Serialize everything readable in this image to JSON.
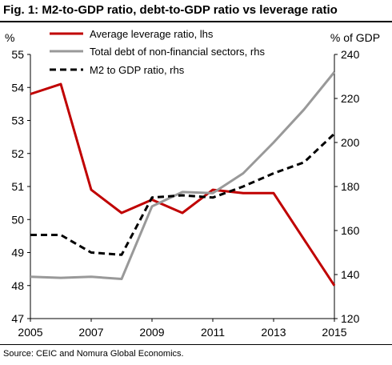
{
  "title": "Fig. 1: M2-to-GDP ratio, debt-to-GDP ratio vs leverage ratio",
  "source": "Source: CEIC and Nomura Global Economics.",
  "chart_data": {
    "type": "line",
    "x": [
      2005,
      2006,
      2007,
      2008,
      2009,
      2010,
      2011,
      2012,
      2013,
      2014,
      2015
    ],
    "x_ticks": [
      "2005",
      "2007",
      "2009",
      "2011",
      "2013",
      "2015"
    ],
    "x_tick_values": [
      2005,
      2007,
      2009,
      2011,
      2013,
      2015
    ],
    "xlim": [
      2005,
      2015
    ],
    "y_left": {
      "label": "%",
      "lim": [
        47,
        55
      ],
      "ticks": [
        "47",
        "48",
        "49",
        "50",
        "51",
        "52",
        "53",
        "54",
        "55"
      ],
      "tick_values": [
        47,
        48,
        49,
        50,
        51,
        52,
        53,
        54,
        55
      ]
    },
    "y_right": {
      "label": "% of GDP",
      "lim": [
        120,
        240
      ],
      "ticks": [
        "120",
        "140",
        "160",
        "180",
        "200",
        "220",
        "240"
      ],
      "tick_values": [
        120,
        140,
        160,
        180,
        200,
        220,
        240
      ]
    },
    "grid": false,
    "legend_position": "top-left",
    "series": [
      {
        "name": "Average leverage ratio, lhs",
        "axis": "left",
        "color": "#c00000",
        "style": "solid",
        "x": [
          2005,
          2006,
          2007,
          2008,
          2009,
          2010,
          2011,
          2012,
          2013,
          2015
        ],
        "values": [
          53.8,
          54.1,
          50.9,
          50.2,
          50.6,
          50.2,
          50.9,
          50.8,
          50.8,
          48.0
        ]
      },
      {
        "name": "Total debt of non-financial sectors, rhs",
        "axis": "right",
        "color": "#999999",
        "style": "solid",
        "x": [
          2005,
          2006,
          2007,
          2008,
          2009,
          2010,
          2011,
          2012,
          2013,
          2014,
          2015
        ],
        "values": [
          139,
          138.5,
          139,
          138,
          171,
          177.5,
          177,
          186,
          200,
          215,
          232
        ]
      },
      {
        "name": "M2 to GDP ratio, rhs",
        "axis": "right",
        "color": "#000000",
        "style": "dashed",
        "x": [
          2005,
          2006,
          2007,
          2008,
          2009,
          2010,
          2011,
          2012,
          2013,
          2014,
          2015
        ],
        "values": [
          158,
          158,
          150,
          149,
          175,
          176,
          175,
          180,
          186,
          191,
          204
        ]
      }
    ]
  }
}
